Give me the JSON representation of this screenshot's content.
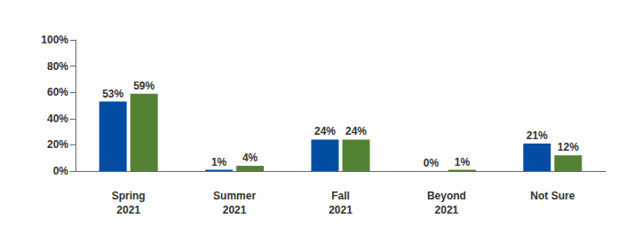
{
  "chart_data": {
    "type": "bar",
    "categories": [
      "Spring\n2021",
      "Summer\n2021",
      "Fall\n2021",
      "Beyond\n2021",
      "Not Sure"
    ],
    "series": [
      {
        "color": "#034ea2",
        "values": [
          53,
          1,
          24,
          0,
          21
        ],
        "value_labels": [
          "53%",
          "1%",
          "24%",
          "0%",
          "21%"
        ]
      },
      {
        "color": "#548235",
        "values": [
          59,
          4,
          24,
          1,
          12
        ],
        "value_labels": [
          "59%",
          "4%",
          "24%",
          "1%",
          "12%"
        ]
      }
    ],
    "ylim": [
      0,
      100
    ],
    "yticks": [
      {
        "value": 0,
        "label": "0%"
      },
      {
        "value": 20,
        "label": "20%"
      },
      {
        "value": 40,
        "label": "40%"
      },
      {
        "value": 60,
        "label": "60%"
      },
      {
        "value": 80,
        "label": "80%"
      },
      {
        "value": 100,
        "label": "100%"
      }
    ],
    "grid": false,
    "data_labels": true
  }
}
